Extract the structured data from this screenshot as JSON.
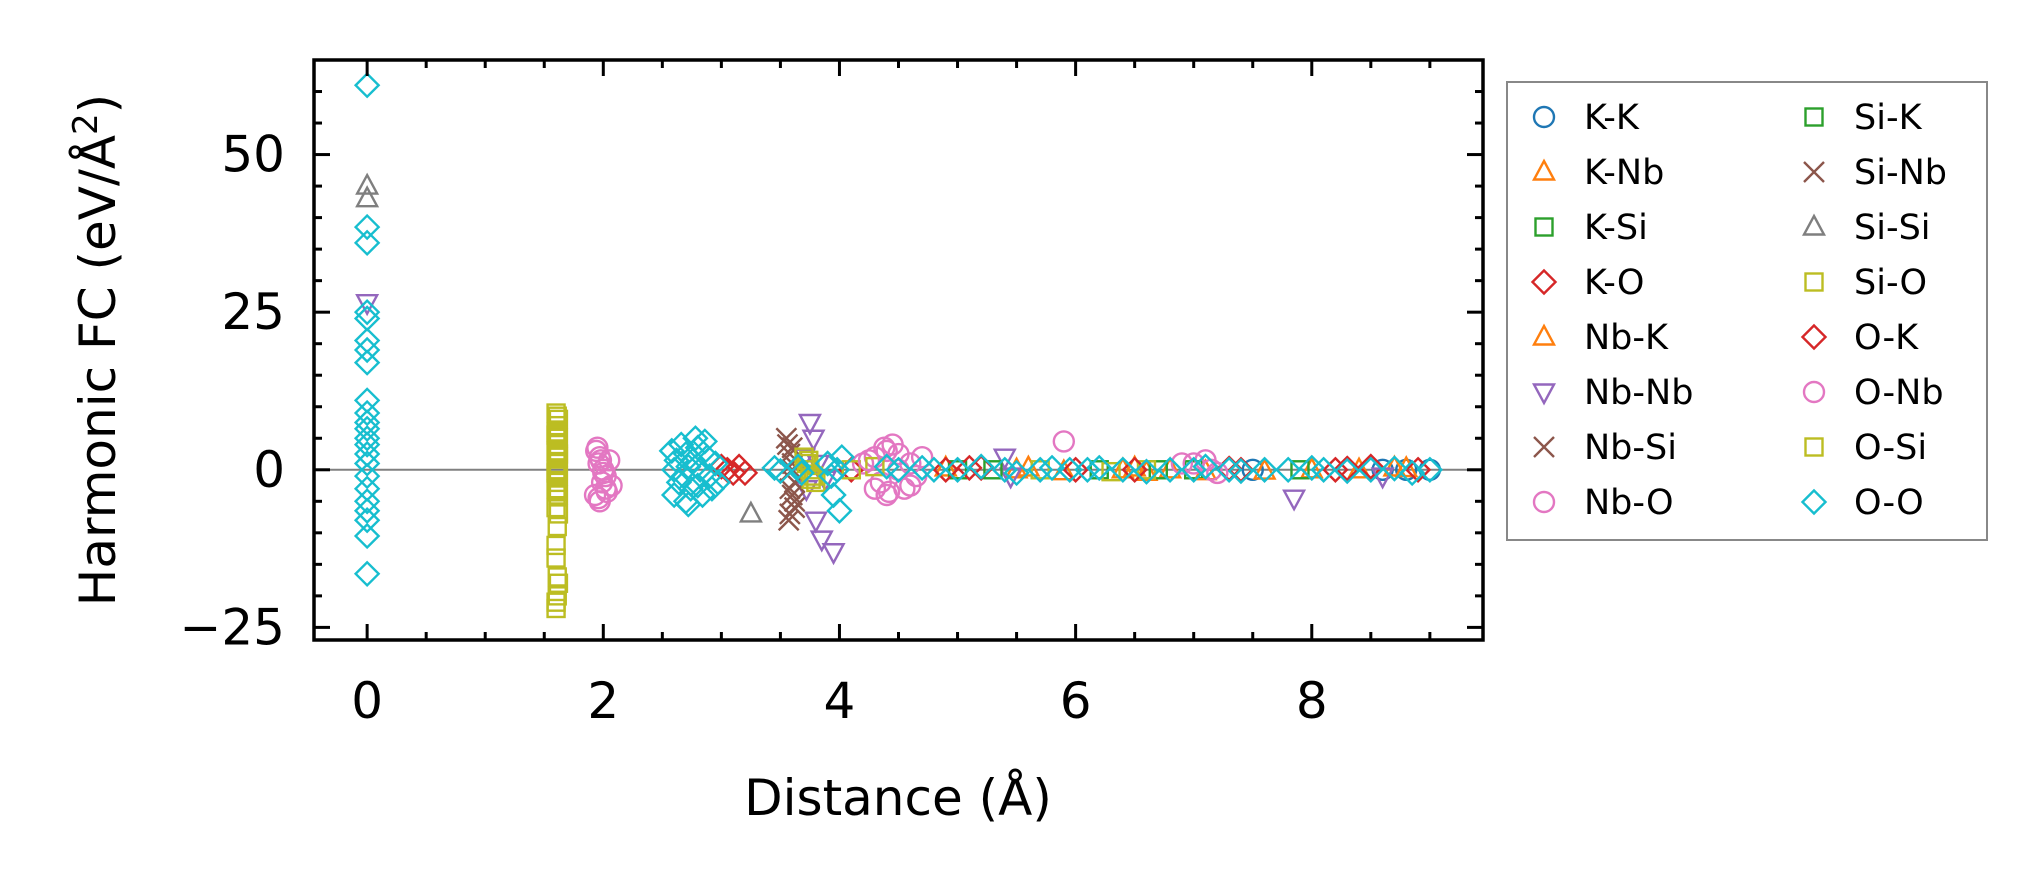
{
  "chart_data": {
    "type": "scatter",
    "xlabel": "Distance (Å)",
    "ylabel_main": "Harmonic FC (eV/Å",
    "ylabel_sup": "2",
    "ylabel_close": ")",
    "xlim": [
      -0.45,
      9.45
    ],
    "ylim": [
      -27,
      65
    ],
    "xticks": [
      0,
      2,
      4,
      6,
      8
    ],
    "xtick_labels": [
      "0",
      "2",
      "4",
      "6",
      "8"
    ],
    "yticks": [
      -25,
      0,
      25,
      50
    ],
    "ytick_labels": [
      "−25",
      "0",
      "25",
      "50"
    ],
    "zero_line": true,
    "grid": false,
    "legend_position": "outside-right",
    "legend_columns": 2,
    "series": [
      {
        "name": "K-K",
        "marker": "circle",
        "color": "#1f77b4",
        "points": [
          [
            9.0,
            0
          ],
          [
            8.8,
            0
          ],
          [
            8.6,
            0
          ],
          [
            7.5,
            0
          ]
        ]
      },
      {
        "name": "K-Nb",
        "marker": "triangle-up",
        "color": "#ff7f0e",
        "points": [
          [
            5.5,
            0
          ],
          [
            6.5,
            0.3
          ],
          [
            6.8,
            0
          ],
          [
            7.6,
            -0.2
          ],
          [
            8.4,
            0
          ],
          [
            8.8,
            0.2
          ],
          [
            4.9,
            0.3
          ],
          [
            5.9,
            -0.3
          ]
        ]
      },
      {
        "name": "K-Si",
        "marker": "square",
        "color": "#2ca02c",
        "points": [
          [
            5.0,
            0
          ],
          [
            6.2,
            0
          ],
          [
            7.0,
            0
          ]
        ]
      },
      {
        "name": "K-O",
        "marker": "diamond",
        "color": "#d62728",
        "points": [
          [
            3.0,
            0.5
          ],
          [
            3.1,
            -0.5
          ],
          [
            4.1,
            0
          ],
          [
            5.2,
            0.3
          ],
          [
            6.0,
            0
          ],
          [
            7.3,
            0.2
          ],
          [
            8.2,
            0
          ],
          [
            8.5,
            0.5
          ]
        ]
      },
      {
        "name": "Nb-K",
        "marker": "triangle-up",
        "color": "#ff7f0e",
        "points": [
          [
            5.6,
            0.3
          ],
          [
            6.4,
            0
          ],
          [
            7.1,
            -0.3
          ],
          [
            8.0,
            0
          ],
          [
            8.7,
            0.3
          ],
          [
            6.6,
            -0.4
          ]
        ]
      },
      {
        "name": "Nb-Nb",
        "marker": "triangle-down",
        "color": "#9467bd",
        "points": [
          [
            3.75,
            7.5
          ],
          [
            3.78,
            5
          ],
          [
            3.8,
            -8
          ],
          [
            3.85,
            -11
          ],
          [
            3.95,
            -13
          ],
          [
            3.7,
            2
          ],
          [
            3.72,
            -3
          ],
          [
            5.4,
            2
          ],
          [
            5.45,
            -1
          ],
          [
            7.85,
            -4.5
          ],
          [
            8.6,
            -1
          ],
          [
            0,
            26.5
          ],
          [
            3.82,
            1
          ],
          [
            3.88,
            -1.5
          ]
        ]
      },
      {
        "name": "Nb-Si",
        "marker": "x",
        "color": "#8c564b",
        "points": [
          [
            3.55,
            5
          ],
          [
            3.58,
            2.5
          ],
          [
            3.6,
            0
          ],
          [
            3.62,
            -2
          ],
          [
            3.6,
            -4
          ],
          [
            3.62,
            -6
          ],
          [
            3.57,
            -8
          ],
          [
            3.6,
            3.5
          ],
          [
            3.58,
            -3
          ]
        ]
      },
      {
        "name": "Nb-O",
        "marker": "circle",
        "color": "#e377c2",
        "points": [
          [
            1.95,
            3.5
          ],
          [
            1.97,
            2
          ],
          [
            1.96,
            1
          ],
          [
            2.0,
            0
          ],
          [
            2.02,
            -1
          ],
          [
            1.99,
            -2
          ],
          [
            2.03,
            -3.5
          ],
          [
            1.97,
            -5
          ],
          [
            2.05,
            1.5
          ],
          [
            2.07,
            -2.5
          ],
          [
            1.93,
            -4
          ],
          [
            4.2,
            1
          ],
          [
            4.3,
            2
          ],
          [
            4.4,
            3
          ],
          [
            4.45,
            4
          ],
          [
            4.5,
            2.5
          ],
          [
            4.35,
            -2
          ],
          [
            4.4,
            -4
          ],
          [
            4.3,
            -3
          ],
          [
            4.6,
            1
          ],
          [
            4.65,
            -1
          ],
          [
            4.55,
            -3
          ],
          [
            4.7,
            2
          ],
          [
            5.9,
            4.5
          ],
          [
            6.9,
            1
          ],
          [
            7.1,
            1.5
          ],
          [
            7.2,
            -0.5
          ]
        ]
      },
      {
        "name": "Si-K",
        "marker": "square",
        "color": "#2ca02c",
        "points": [
          [
            5.3,
            0
          ],
          [
            6.7,
            0
          ],
          [
            7.9,
            0
          ]
        ]
      },
      {
        "name": "Si-Nb",
        "marker": "x",
        "color": "#8c564b",
        "points": [
          [
            3.56,
            4
          ],
          [
            3.6,
            1
          ],
          [
            3.62,
            -5
          ],
          [
            3.58,
            -7
          ]
        ]
      },
      {
        "name": "Si-Si",
        "marker": "triangle-up",
        "color": "#7f7f7f",
        "points": [
          [
            0,
            45
          ],
          [
            0,
            43
          ],
          [
            3.25,
            -7
          ]
        ]
      },
      {
        "name": "Si-O",
        "marker": "square",
        "color": "#bcbd22",
        "points": [
          [
            1.6,
            9
          ],
          [
            1.62,
            8
          ],
          [
            1.61,
            7
          ],
          [
            1.6,
            6
          ],
          [
            1.62,
            5
          ],
          [
            1.61,
            4
          ],
          [
            1.6,
            3
          ],
          [
            1.62,
            2
          ],
          [
            1.61,
            1
          ],
          [
            1.6,
            0
          ],
          [
            1.62,
            -1
          ],
          [
            1.61,
            -2
          ],
          [
            1.6,
            -3
          ],
          [
            1.62,
            -4
          ],
          [
            1.6,
            -6
          ],
          [
            1.61,
            -9
          ],
          [
            1.6,
            -14
          ],
          [
            1.62,
            -18
          ],
          [
            1.61,
            -20
          ],
          [
            1.6,
            -22
          ],
          [
            3.7,
            2
          ],
          [
            3.75,
            0
          ],
          [
            3.8,
            -2
          ],
          [
            3.72,
            1
          ],
          [
            3.78,
            -1
          ],
          [
            4.1,
            0
          ],
          [
            4.3,
            0.5
          ],
          [
            5.7,
            0
          ],
          [
            6.3,
            -0.3
          ],
          [
            6.6,
            0
          ]
        ]
      },
      {
        "name": "O-K",
        "marker": "diamond",
        "color": "#d62728",
        "points": [
          [
            3.05,
            0
          ],
          [
            3.15,
            0.5
          ],
          [
            3.2,
            -0.5
          ],
          [
            4.9,
            0
          ],
          [
            5.1,
            0.3
          ],
          [
            6.5,
            0
          ],
          [
            7.4,
            0
          ],
          [
            8.3,
            0.2
          ],
          [
            8.9,
            0
          ]
        ]
      },
      {
        "name": "O-Nb",
        "marker": "circle",
        "color": "#e377c2",
        "points": [
          [
            1.94,
            3
          ],
          [
            1.98,
            1.5
          ],
          [
            2.0,
            -0.5
          ],
          [
            2.02,
            -3
          ],
          [
            1.96,
            -4.5
          ],
          [
            4.25,
            1.5
          ],
          [
            4.38,
            3.5
          ],
          [
            4.42,
            -3.5
          ],
          [
            4.5,
            0
          ],
          [
            4.6,
            -2.5
          ],
          [
            7.0,
            1
          ],
          [
            7.15,
            0
          ]
        ]
      },
      {
        "name": "O-Si",
        "marker": "square",
        "color": "#bcbd22",
        "points": [
          [
            1.61,
            8.5
          ],
          [
            1.6,
            5.5
          ],
          [
            1.62,
            2.5
          ],
          [
            1.6,
            -0.5
          ],
          [
            1.61,
            -3.5
          ],
          [
            1.62,
            -7
          ],
          [
            1.6,
            -12
          ],
          [
            1.61,
            -17
          ],
          [
            1.6,
            -21
          ],
          [
            3.74,
            1.5
          ],
          [
            3.76,
            -1.5
          ]
        ]
      },
      {
        "name": "O-O",
        "marker": "diamond",
        "color": "#17becf",
        "points": [
          [
            0,
            61
          ],
          [
            0,
            38.5
          ],
          [
            0,
            36
          ],
          [
            0,
            25
          ],
          [
            0,
            24
          ],
          [
            0,
            20.5
          ],
          [
            0,
            19
          ],
          [
            0,
            17
          ],
          [
            0,
            11
          ],
          [
            0,
            9
          ],
          [
            0,
            7.5
          ],
          [
            0,
            6.5
          ],
          [
            0,
            5
          ],
          [
            0,
            4
          ],
          [
            0,
            2.5
          ],
          [
            0,
            1
          ],
          [
            0,
            -1
          ],
          [
            0,
            -3
          ],
          [
            0,
            -5
          ],
          [
            0,
            -6.5
          ],
          [
            0,
            -8
          ],
          [
            0,
            -10.5
          ],
          [
            0,
            -16.5
          ],
          [
            2.58,
            3
          ],
          [
            2.62,
            1.5
          ],
          [
            2.6,
            0
          ],
          [
            2.64,
            -2
          ],
          [
            2.6,
            -4
          ],
          [
            2.66,
            4
          ],
          [
            2.7,
            2.5
          ],
          [
            2.72,
            0.5
          ],
          [
            2.68,
            -1
          ],
          [
            2.74,
            -3
          ],
          [
            2.7,
            -5
          ],
          [
            2.76,
            1.5
          ],
          [
            2.8,
            3.5
          ],
          [
            2.82,
            0
          ],
          [
            2.8,
            -2.5
          ],
          [
            2.84,
            -4
          ],
          [
            2.86,
            4.5
          ],
          [
            2.88,
            2
          ],
          [
            2.9,
            -1
          ],
          [
            2.92,
            -3
          ],
          [
            2.78,
            5
          ],
          [
            2.72,
            -5.5
          ],
          [
            2.95,
            1
          ],
          [
            2.97,
            -2
          ],
          [
            3.45,
            0.3
          ],
          [
            3.5,
            -0.2
          ],
          [
            3.65,
            0.5
          ],
          [
            3.68,
            -0.5
          ],
          [
            3.9,
            1
          ],
          [
            3.93,
            -1
          ],
          [
            3.95,
            -4
          ],
          [
            4.0,
            -6.5
          ],
          [
            4.02,
            2
          ],
          [
            3.98,
            0
          ],
          [
            4.4,
            0.5
          ],
          [
            4.5,
            0
          ],
          [
            4.7,
            0.3
          ],
          [
            4.8,
            0
          ],
          [
            5.0,
            0
          ],
          [
            5.2,
            0.5
          ],
          [
            5.4,
            0
          ],
          [
            5.5,
            -0.5
          ],
          [
            5.7,
            0
          ],
          [
            5.8,
            0.3
          ],
          [
            5.95,
            0
          ],
          [
            6.1,
            0
          ],
          [
            6.2,
            0.3
          ],
          [
            6.4,
            0
          ],
          [
            6.6,
            -0.3
          ],
          [
            6.8,
            0
          ],
          [
            7.0,
            0
          ],
          [
            7.1,
            0.5
          ],
          [
            7.3,
            0
          ],
          [
            7.4,
            -0.2
          ],
          [
            7.6,
            0
          ],
          [
            7.8,
            0
          ],
          [
            8.0,
            0.3
          ],
          [
            8.1,
            0
          ],
          [
            8.3,
            -0.2
          ],
          [
            8.5,
            0
          ],
          [
            8.7,
            0.2
          ],
          [
            8.85,
            -0.5
          ],
          [
            9.0,
            0
          ]
        ]
      }
    ]
  }
}
